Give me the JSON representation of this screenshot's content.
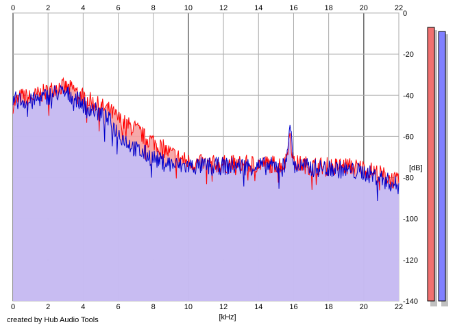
{
  "credit": "created by Hub Audio Tools",
  "chart_data": {
    "type": "area",
    "xlabel": "[kHz]",
    "ylabel": "[dB]",
    "xlim": [
      0,
      22
    ],
    "ylim": [
      -140,
      0
    ],
    "x_ticks": [
      "0",
      "2",
      "4",
      "6",
      "8",
      "10",
      "12",
      "14",
      "16",
      "18",
      "20",
      "22"
    ],
    "y_ticks": [
      "0",
      "-20",
      "-40",
      "-60",
      "-80",
      "-100",
      "-120",
      "-140"
    ],
    "grid": true,
    "series": [
      {
        "channel": "left",
        "color": "#ff0000",
        "fill": "#f5a0a0",
        "x": [
          0,
          0.5,
          1,
          1.5,
          2,
          2.5,
          3,
          3.5,
          4,
          4.5,
          5,
          5.5,
          6,
          6.5,
          7,
          7.5,
          8,
          8.5,
          9,
          9.5,
          10,
          11,
          12,
          13,
          14,
          15,
          15.5,
          15.8,
          16,
          16.5,
          17,
          18,
          19,
          20,
          21,
          22
        ],
        "values": [
          -44,
          -40,
          -41,
          -39,
          -38,
          -35,
          -36,
          -37,
          -40,
          -43,
          -45,
          -47,
          -51,
          -54,
          -56,
          -60,
          -62,
          -65,
          -68,
          -70,
          -72,
          -73,
          -73,
          -73,
          -73,
          -73,
          -73,
          -58,
          -73,
          -73,
          -74,
          -74,
          -74,
          -75,
          -78,
          -82
        ]
      },
      {
        "channel": "right",
        "color": "#0000cc",
        "fill": "#c0c0ff",
        "x": [
          0,
          0.5,
          1,
          1.5,
          2,
          2.5,
          3,
          3.5,
          4,
          4.5,
          5,
          5.5,
          6,
          6.5,
          7,
          7.5,
          8,
          8.5,
          9,
          9.5,
          10,
          11,
          12,
          13,
          14,
          15,
          15.5,
          15.8,
          16,
          16.5,
          17,
          18,
          19,
          20,
          21,
          22
        ],
        "values": [
          -42,
          -42,
          -43,
          -41,
          -40,
          -38,
          -39,
          -40,
          -44,
          -46,
          -49,
          -52,
          -58,
          -62,
          -66,
          -68,
          -70,
          -72,
          -73,
          -74,
          -74,
          -74,
          -74,
          -74,
          -74,
          -74,
          -74,
          -54,
          -74,
          -74,
          -75,
          -75,
          -76,
          -77,
          -80,
          -84
        ]
      }
    ],
    "level_meters": [
      {
        "channel": "left",
        "color": "#f07070",
        "value_db": -7
      },
      {
        "channel": "right",
        "color": "#8080ff",
        "value_db": -9
      }
    ]
  }
}
